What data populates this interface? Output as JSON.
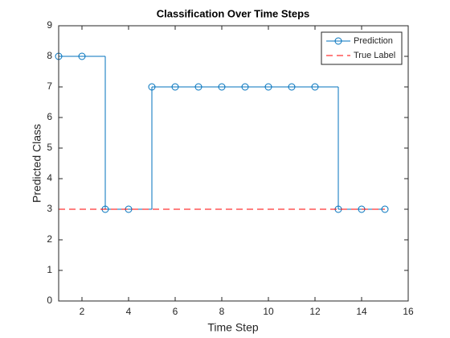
{
  "chart_data": {
    "type": "stairs",
    "title": "Classification Over Time Steps",
    "x_label": "Time Step",
    "y_label": "Predicted Class",
    "x": [
      1,
      2,
      3,
      4,
      5,
      6,
      7,
      8,
      9,
      10,
      11,
      12,
      13,
      14,
      15
    ],
    "series": [
      {
        "name": "Prediction",
        "color": "#0072bd",
        "style": "stairs-marker",
        "values": [
          8,
          8,
          3,
          3,
          7,
          7,
          7,
          7,
          7,
          7,
          7,
          7,
          3,
          3,
          3
        ]
      },
      {
        "name": "True Label",
        "color": "#ff0000",
        "style": "dashed",
        "values": [
          3,
          3,
          3,
          3,
          3,
          3,
          3,
          3,
          3,
          3,
          3,
          3,
          3,
          3,
          3
        ]
      }
    ],
    "xlim": [
      1,
      16
    ],
    "xticks": [
      2,
      4,
      6,
      8,
      10,
      12,
      14,
      16
    ],
    "ylim": [
      0,
      9
    ],
    "yticks": [
      0,
      1,
      2,
      3,
      4,
      5,
      6,
      7,
      8,
      9
    ],
    "legend": "northeast"
  }
}
